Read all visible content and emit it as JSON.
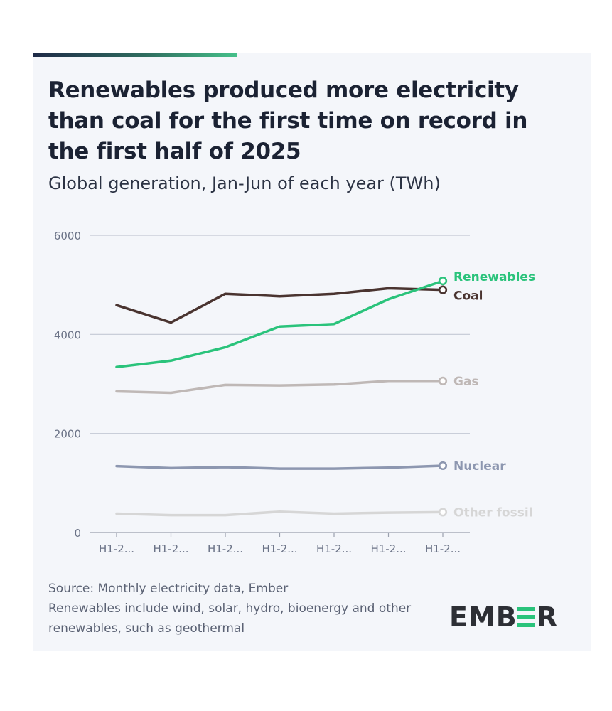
{
  "header": {
    "title": "Renewables produced more electricity than coal for the first time on record in the first half of 2025",
    "subtitle": "Global generation, Jan-Jun of each year (TWh)"
  },
  "footer": {
    "source": "Source: Monthly electricity data, Ember",
    "note": "Renewables include wind, solar, hydro, bioenergy and other renewables, such as geothermal"
  },
  "brand": {
    "logo_text": "EMBER",
    "logo_color": "#2d2f35"
  },
  "colors": {
    "accent_dark": "#1e2a47",
    "accent_green": "#45c08a",
    "grid": "#c3c8d4",
    "axis_text": "#6b7387"
  },
  "chart_data": {
    "type": "line",
    "x": [
      "H1-2...",
      "H1-2...",
      "H1-2...",
      "H1-2...",
      "H1-2...",
      "H1-2...",
      "H1-2..."
    ],
    "ylim": [
      0,
      6000
    ],
    "yticks": [
      0,
      2000,
      4000,
      6000
    ],
    "grid": true,
    "legend": "end-of-line labels",
    "series": [
      {
        "name": "Renewables",
        "color": "#2ac37b",
        "values": [
          3340,
          3470,
          3740,
          4160,
          4210,
          4710,
          5080
        ]
      },
      {
        "name": "Coal",
        "color": "#4a3430",
        "values": [
          4590,
          4240,
          4820,
          4770,
          4820,
          4930,
          4900
        ]
      },
      {
        "name": "Gas",
        "color": "#bfb8b6",
        "values": [
          2850,
          2820,
          2980,
          2970,
          2990,
          3060,
          3060
        ]
      },
      {
        "name": "Nuclear",
        "color": "#8d97b0",
        "values": [
          1340,
          1300,
          1320,
          1290,
          1290,
          1310,
          1350
        ]
      },
      {
        "name": "Other fossil",
        "color": "#d6d6d6",
        "values": [
          380,
          350,
          350,
          420,
          380,
          400,
          410
        ]
      }
    ]
  }
}
